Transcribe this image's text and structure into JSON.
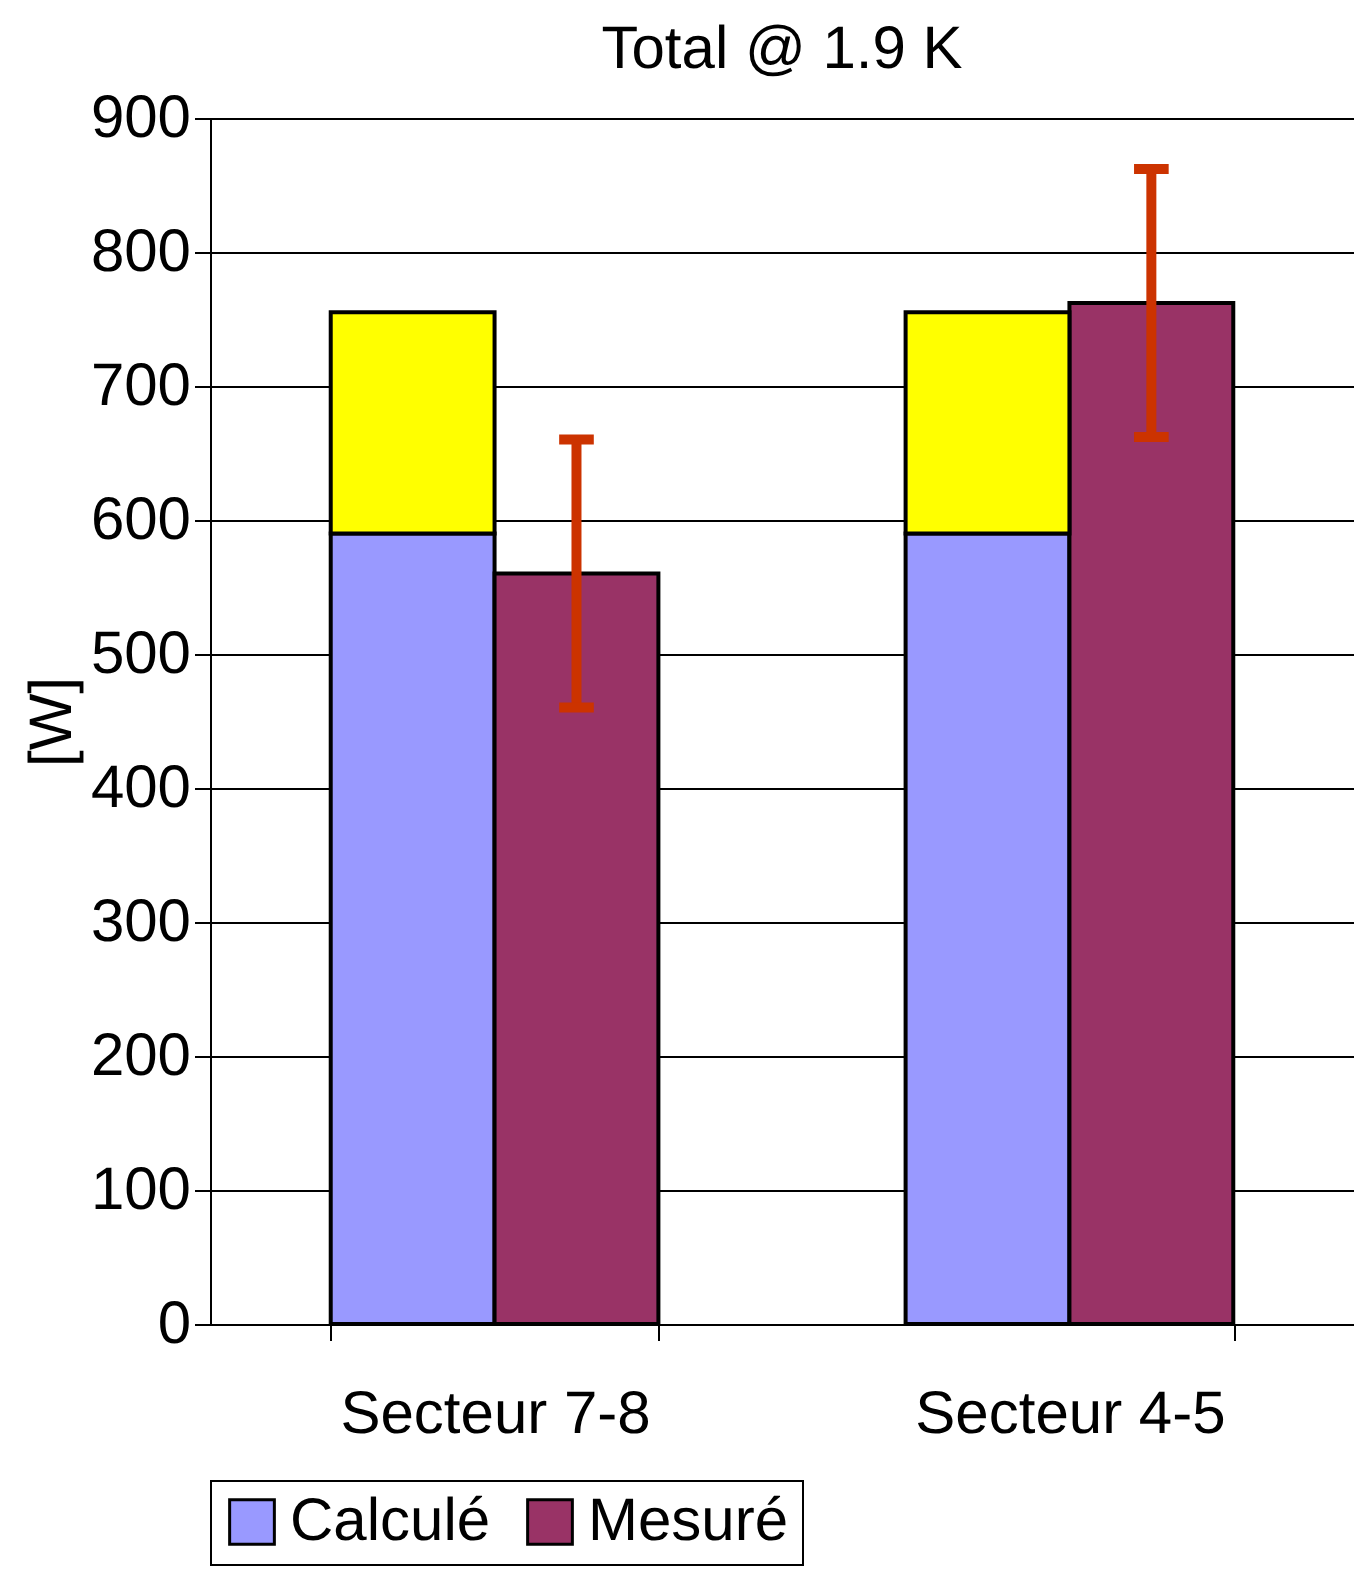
{
  "chart_data": {
    "type": "bar",
    "title": "Total @ 1.9 K",
    "ylabel": "[W]",
    "categories": [
      "Secteur 7-8",
      "Secteur 4-5"
    ],
    "series": [
      {
        "name": "Calculé",
        "color": "#9999ff",
        "values": [
          590,
          590
        ],
        "base": [
          0,
          0
        ]
      },
      {
        "color": "#ffff00",
        "values": [
          165,
          165
        ],
        "base": [
          590,
          590
        ]
      },
      {
        "name": "Mesuré",
        "color": "#993366",
        "values": [
          560,
          762
        ],
        "errors": [
          100,
          100
        ]
      }
    ],
    "ylim": [
      0,
      900
    ],
    "yticks": [
      0,
      100,
      200,
      300,
      400,
      500,
      600,
      700,
      800,
      900
    ],
    "grid": "y",
    "legend": "bottom"
  }
}
